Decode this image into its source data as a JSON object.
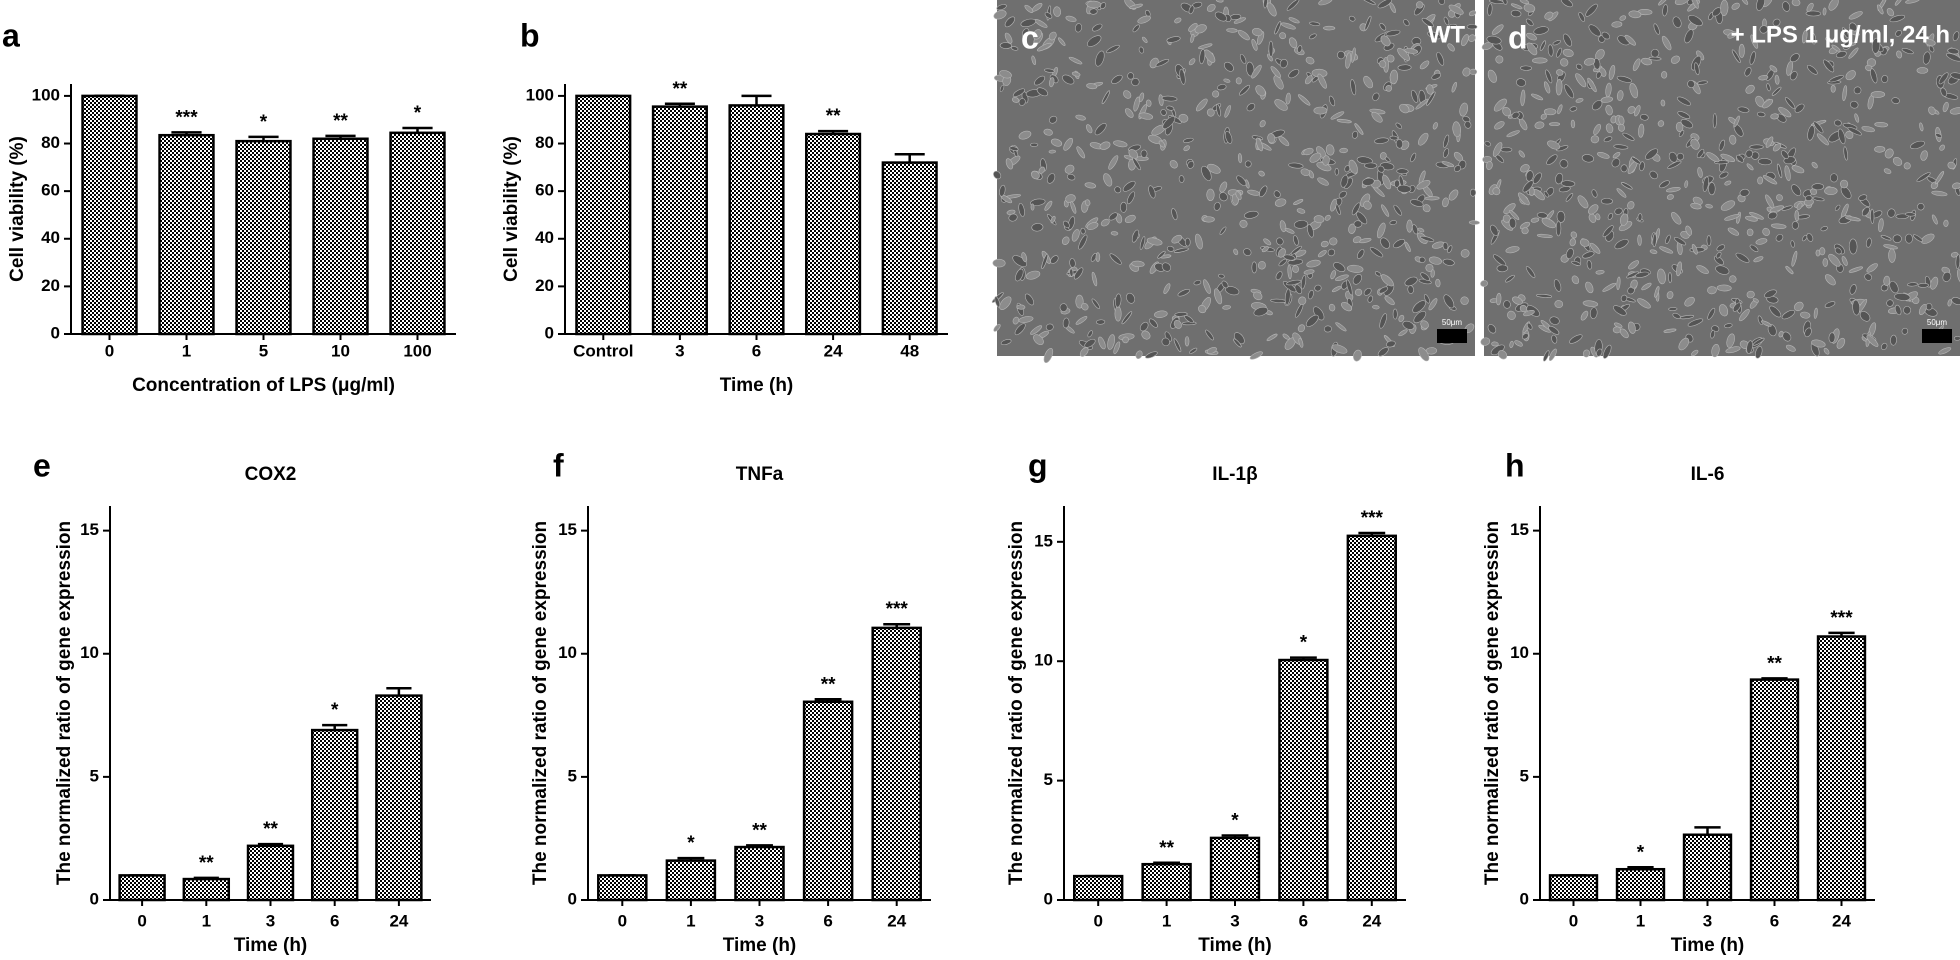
{
  "chart_data": [
    {
      "type": "bar",
      "panel_label": "a",
      "x_label": "Concentration of LPS (μg/ml)",
      "y_label": "Cell viability (%)",
      "categories": [
        "0",
        "1",
        "5",
        "10",
        "100"
      ],
      "values": [
        100,
        83.5,
        81,
        82,
        84.5
      ],
      "errors": [
        0,
        1.2,
        1.8,
        1.2,
        2
      ],
      "annotations": [
        null,
        "***",
        "*",
        "**",
        "*"
      ],
      "color": "#000000",
      "ylim": [
        0,
        105
      ],
      "yticks": [
        0,
        20,
        40,
        60,
        80,
        100
      ]
    },
    {
      "type": "bar",
      "panel_label": "b",
      "x_label": "Time (h)",
      "y_label": "Cell viability (%)",
      "categories": [
        "Control",
        "3",
        "6",
        "24",
        "48"
      ],
      "values": [
        100,
        95.5,
        96,
        84,
        72
      ],
      "errors": [
        0,
        1.2,
        4,
        1.2,
        3.5
      ],
      "annotations": [
        null,
        "**",
        null,
        "**",
        null
      ],
      "color": "#000000",
      "ylim": [
        0,
        105
      ],
      "yticks": [
        0,
        20,
        40,
        60,
        80,
        100
      ]
    },
    {
      "type": "bar",
      "panel_label": "e",
      "title": "COX2",
      "x_label": "Time (h)",
      "y_label": "The normalized ratio of gene expression",
      "categories": [
        "0",
        "1",
        "3",
        "6",
        "24"
      ],
      "values": [
        1,
        0.85,
        2.2,
        6.9,
        8.3
      ],
      "errors": [
        0,
        0.05,
        0.07,
        0.2,
        0.3
      ],
      "annotations": [
        null,
        "**",
        "**",
        "*",
        null
      ],
      "color": "#000000",
      "ylim": [
        0,
        16
      ],
      "yticks": [
        0,
        5,
        10,
        15
      ]
    },
    {
      "type": "bar",
      "panel_label": "f",
      "title": "TNFa",
      "x_label": "Time (h)",
      "y_label": "The normalized ratio of gene expression",
      "categories": [
        "0",
        "1",
        "3",
        "6",
        "24"
      ],
      "values": [
        1,
        1.6,
        2.15,
        8.05,
        11.05
      ],
      "errors": [
        0,
        0.1,
        0.07,
        0.1,
        0.15
      ],
      "annotations": [
        null,
        "*",
        "**",
        "**",
        "***"
      ],
      "color": "#000000",
      "ylim": [
        0,
        16
      ],
      "yticks": [
        0,
        5,
        10,
        15
      ]
    },
    {
      "type": "bar",
      "panel_label": "g",
      "title": "IL-1β",
      "x_label": "Time (h)",
      "y_label": "The normalized ratio of gene expression",
      "categories": [
        "0",
        "1",
        "3",
        "6",
        "24"
      ],
      "values": [
        1,
        1.5,
        2.6,
        10.05,
        15.25
      ],
      "errors": [
        0,
        0.06,
        0.1,
        0.1,
        0.12
      ],
      "annotations": [
        null,
        "**",
        "*",
        "*",
        "***"
      ],
      "color": "#000000",
      "ylim": [
        0,
        16.5
      ],
      "yticks": [
        0,
        5,
        10,
        15
      ]
    },
    {
      "type": "bar",
      "panel_label": "h",
      "title": "IL-6",
      "x_label": "Time (h)",
      "y_label": "The normalized ratio of gene expression",
      "categories": [
        "0",
        "1",
        "3",
        "6",
        "24"
      ],
      "values": [
        1,
        1.25,
        2.65,
        8.95,
        10.7
      ],
      "errors": [
        0,
        0.08,
        0.3,
        0.05,
        0.15
      ],
      "annotations": [
        null,
        "*",
        null,
        "**",
        "***"
      ],
      "color": "#000000",
      "ylim": [
        0,
        16
      ],
      "yticks": [
        0,
        5,
        10,
        15
      ]
    }
  ],
  "images": [
    {
      "panel_label": "c",
      "label": "WT",
      "scale_bar": "50μm"
    },
    {
      "panel_label": "d",
      "label": "+ LPS 1 μg/ml, 24 h",
      "scale_bar": "50μm"
    }
  ]
}
